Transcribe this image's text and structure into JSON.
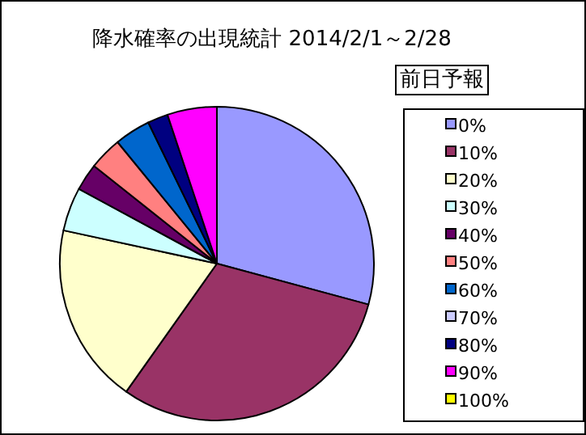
{
  "chart_data": {
    "type": "pie",
    "title": "降水確率の出現統計 2014/2/1～2/28",
    "legend_title": "前日予報",
    "legend": "right",
    "categories": [
      "0%",
      "10%",
      "20%",
      "30%",
      "40%",
      "50%",
      "60%",
      "70%",
      "80%",
      "90%",
      "100%"
    ],
    "values": [
      29.2,
      30.6,
      18.6,
      4.5,
      2.8,
      3.4,
      3.7,
      0,
      2.1,
      5.1,
      0
    ],
    "colors": [
      "#9999ff",
      "#993366",
      "#ffffcc",
      "#ccffff",
      "#660066",
      "#ff8080",
      "#0066cc",
      "#ccccff",
      "#000080",
      "#ff00ff",
      "#ffff00"
    ]
  }
}
